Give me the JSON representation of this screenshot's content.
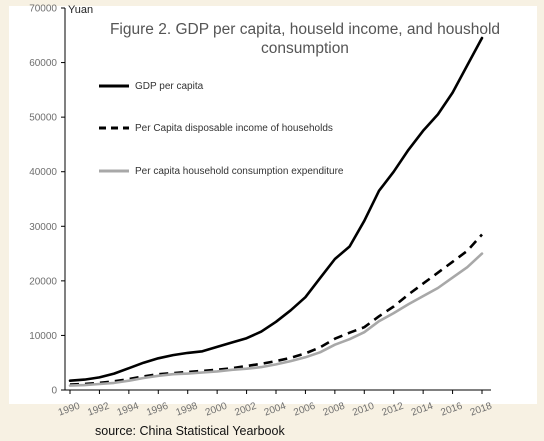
{
  "chart_data": {
    "type": "line",
    "title_lines": [
      "Figure 2. GDP per capita, houseld income, and houshold",
      "consumption"
    ],
    "ylabel": "Yuan",
    "xlabel": "",
    "ylim": [
      0,
      70000
    ],
    "yticks": [
      "0",
      "10000",
      "20000",
      "30000",
      "40000",
      "50000",
      "60000",
      "70000"
    ],
    "xlim": [
      1990,
      2018
    ],
    "xticks": [
      "1990",
      "1992",
      "1994",
      "1996",
      "1998",
      "2000",
      "2002",
      "2004",
      "2006",
      "2008",
      "2010",
      "2012",
      "2014",
      "2016",
      "2018"
    ],
    "grid": false,
    "legend_position": "top-left",
    "x": [
      1990,
      1991,
      1992,
      1993,
      1994,
      1995,
      1996,
      1997,
      1998,
      1999,
      2000,
      2001,
      2002,
      2003,
      2004,
      2005,
      2006,
      2007,
      2008,
      2009,
      2010,
      2011,
      2012,
      2013,
      2014,
      2015,
      2016,
      2017,
      2018
    ],
    "series": [
      {
        "name": "GDP per capita",
        "style": "solid",
        "color": "#000000",
        "values": [
          1700,
          1900,
          2300,
          3000,
          4000,
          5000,
          5800,
          6400,
          6800,
          7100,
          7900,
          8700,
          9500,
          10700,
          12500,
          14600,
          17000,
          20500,
          24000,
          26300,
          31000,
          36500,
          40000,
          44000,
          47500,
          50500,
          54500,
          59500,
          64500
        ]
      },
      {
        "name": "Per Capita disposable income of households",
        "style": "dashed",
        "color": "#000000",
        "values": [
          1000,
          1100,
          1300,
          1600,
          2000,
          2500,
          2900,
          3100,
          3300,
          3500,
          3700,
          4000,
          4400,
          4800,
          5300,
          5900,
          6700,
          7800,
          9400,
          10500,
          11500,
          13500,
          15300,
          17500,
          19500,
          21500,
          23500,
          25500,
          28500
        ]
      },
      {
        "name": "Per capita household consumption expenditure",
        "style": "solid",
        "color": "#a8a8a8",
        "values": [
          800,
          900,
          1100,
          1300,
          1700,
          2200,
          2600,
          2900,
          3000,
          3200,
          3400,
          3700,
          3900,
          4200,
          4700,
          5300,
          6000,
          6900,
          8300,
          9300,
          10600,
          12600,
          14100,
          15700,
          17200,
          18700,
          20600,
          22500,
          25000
        ]
      }
    ]
  },
  "source_text": "source: China Statistical Yearbook"
}
